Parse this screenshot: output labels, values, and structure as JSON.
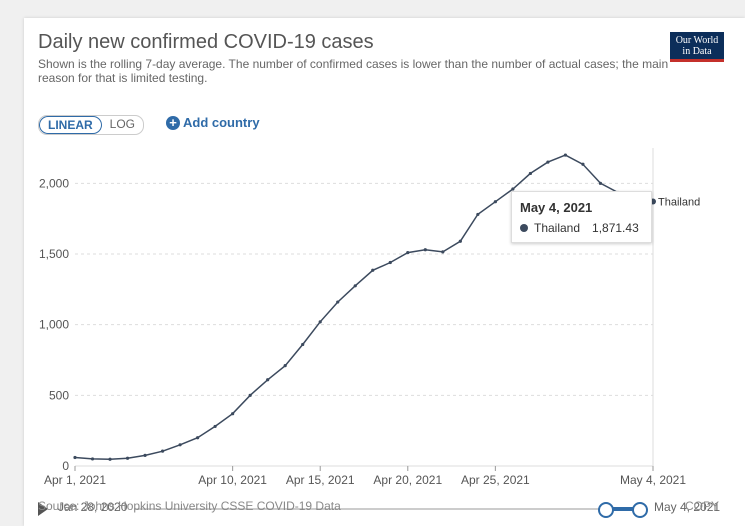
{
  "title": "Daily new confirmed COVID-19 cases",
  "subtitle": "Shown is the rolling 7-day average. The number of confirmed cases is lower than the number of actual cases; the main reason for that is limited testing.",
  "logo": {
    "line1": "Our World",
    "line2": "in Data"
  },
  "controls": {
    "linear_label": "LINEAR",
    "log_label": "LOG",
    "add_country_label": "Add country",
    "add_icon": "+"
  },
  "tooltip": {
    "date": "May 4, 2021",
    "country": "Thailand",
    "value": "1,871.43"
  },
  "source": "Source: Johns Hopkins University CSSE COVID-19 Data",
  "copy_label": "COPY",
  "timeline": {
    "start_label": "Jan 28, 2020",
    "end_label": "May 4, 2021"
  },
  "colors": {
    "series": "#3c4a5e",
    "accent": "#2f6ba8",
    "grid": "#dddddd"
  },
  "chart_data": {
    "type": "line",
    "title": "Daily new confirmed COVID-19 cases",
    "ylim": [
      0,
      2250
    ],
    "yticks": [
      0,
      500,
      1000,
      1500,
      2000
    ],
    "ytick_labels": [
      "0",
      "500",
      "1,000",
      "1,500",
      "2,000"
    ],
    "xticks": [
      "Apr 1, 2021",
      "Apr 10, 2021",
      "Apr 15, 2021",
      "Apr 20, 2021",
      "Apr 25, 2021",
      "May 4, 2021"
    ],
    "xtick_days": [
      1,
      10,
      15,
      20,
      25,
      34
    ],
    "grid": true,
    "series": [
      {
        "name": "Thailand",
        "x": [
          "Apr 1",
          "Apr 2",
          "Apr 3",
          "Apr 4",
          "Apr 5",
          "Apr 6",
          "Apr 7",
          "Apr 8",
          "Apr 9",
          "Apr 10",
          "Apr 11",
          "Apr 12",
          "Apr 13",
          "Apr 14",
          "Apr 15",
          "Apr 16",
          "Apr 17",
          "Apr 18",
          "Apr 19",
          "Apr 20",
          "Apr 21",
          "Apr 22",
          "Apr 23",
          "Apr 24",
          "Apr 25",
          "Apr 26",
          "Apr 27",
          "Apr 28",
          "Apr 29",
          "Apr 30",
          "May 1",
          "May 2",
          "May 3",
          "May 4"
        ],
        "y": [
          60,
          50,
          48,
          55,
          75,
          105,
          150,
          200,
          280,
          370,
          500,
          610,
          710,
          860,
          1020,
          1160,
          1275,
          1385,
          1440,
          1510,
          1530,
          1515,
          1590,
          1780,
          1870,
          1960,
          2070,
          2150,
          2200,
          2135,
          2000,
          1935,
          1930,
          1871.43
        ]
      }
    ]
  }
}
